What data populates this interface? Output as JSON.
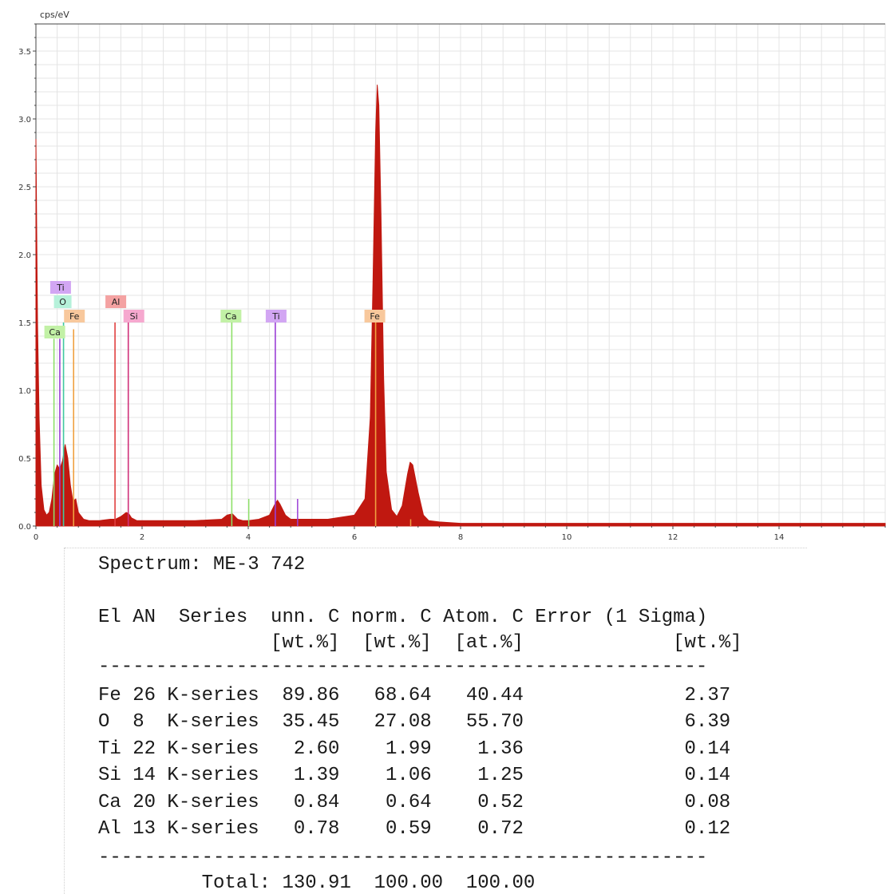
{
  "chart_data": {
    "type": "line",
    "ylabel": "cps/eV",
    "xlim": [
      0,
      16
    ],
    "ylim": [
      0,
      3.7
    ],
    "x_ticks": [
      0,
      2,
      4,
      6,
      8,
      10,
      12,
      14
    ],
    "y_ticks": [
      0.0,
      0.5,
      1.0,
      1.5,
      2.0,
      2.5,
      3.0,
      3.5
    ],
    "y_tick_labels": [
      "0.0",
      "0.5",
      "1.0",
      "1.5",
      "2.0",
      "2.5",
      "3.0",
      "3.5"
    ],
    "series": [
      {
        "color": "#c01810",
        "x": [
          0,
          0.03,
          0.06,
          0.1,
          0.15,
          0.2,
          0.25,
          0.3,
          0.35,
          0.4,
          0.45,
          0.5,
          0.55,
          0.6,
          0.65,
          0.7,
          0.75,
          0.8,
          0.9,
          1.0,
          1.2,
          1.4,
          1.5,
          1.6,
          1.7,
          1.75,
          1.8,
          1.9,
          2.0,
          2.5,
          3.0,
          3.5,
          3.6,
          3.7,
          3.8,
          3.9,
          4.0,
          4.2,
          4.4,
          4.5,
          4.55,
          4.6,
          4.7,
          4.8,
          5.0,
          5.5,
          6.0,
          6.2,
          6.3,
          6.35,
          6.4,
          6.43,
          6.46,
          6.5,
          6.55,
          6.6,
          6.7,
          6.8,
          6.9,
          7.0,
          7.05,
          7.1,
          7.2,
          7.3,
          7.4,
          7.6,
          8.0,
          9.0,
          10.0,
          11.0,
          12.0,
          13.0,
          14.0,
          15.0,
          16.0
        ],
        "y": [
          2.85,
          1.5,
          0.8,
          0.3,
          0.12,
          0.08,
          0.1,
          0.2,
          0.38,
          0.45,
          0.42,
          0.48,
          0.6,
          0.5,
          0.3,
          0.18,
          0.2,
          0.1,
          0.05,
          0.04,
          0.04,
          0.05,
          0.05,
          0.07,
          0.1,
          0.09,
          0.06,
          0.04,
          0.04,
          0.04,
          0.04,
          0.05,
          0.08,
          0.09,
          0.05,
          0.04,
          0.04,
          0.05,
          0.08,
          0.16,
          0.19,
          0.16,
          0.08,
          0.05,
          0.05,
          0.05,
          0.08,
          0.2,
          0.8,
          1.8,
          2.9,
          3.25,
          3.1,
          2.3,
          1.1,
          0.4,
          0.12,
          0.07,
          0.15,
          0.38,
          0.47,
          0.45,
          0.25,
          0.08,
          0.04,
          0.03,
          0.02,
          0.02,
          0.02,
          0.02,
          0.02,
          0.02,
          0.02,
          0.02,
          0.02
        ]
      }
    ],
    "markers": [
      {
        "label": "Ca",
        "x": 0.34,
        "height": 1.38,
        "color": "#8de068",
        "bg": "#c2f1a6"
      },
      {
        "label": "Ti",
        "x": 0.45,
        "height": 1.38,
        "color": "#9a3fd6",
        "bg": "#d2a6f3"
      },
      {
        "label": "O",
        "x": 0.52,
        "height": 1.5,
        "color": "#40c8a0",
        "bg": "#b6f1da"
      },
      {
        "label": "Fe",
        "x": 0.71,
        "height": 1.45,
        "color": "#f0a040",
        "bg": "#f8c89c"
      },
      {
        "label": "Al",
        "x": 1.49,
        "height": 1.5,
        "color": "#e04040",
        "bg": "#f4a2a2"
      },
      {
        "label": "Si",
        "x": 1.74,
        "height": 1.5,
        "color": "#d0307a",
        "bg": "#f6a8cf"
      },
      {
        "label": "Ca",
        "x": 3.69,
        "height": 1.5,
        "color": "#8de068",
        "bg": "#c2f1a6"
      },
      {
        "label": "Ti",
        "x": 4.51,
        "height": 1.5,
        "color": "#9a3fd6",
        "bg": "#d2a6f3"
      },
      {
        "label": "Fe",
        "x": 6.4,
        "height": 1.5,
        "color": "#f0a040",
        "bg": "#f8c89c"
      }
    ],
    "minor_lines": [
      {
        "x": 4.01,
        "height": 0.2,
        "color": "#8de068"
      },
      {
        "x": 4.93,
        "height": 0.2,
        "color": "#9a3fd6"
      },
      {
        "x": 7.06,
        "height": 0.05,
        "color": "#f0a040"
      }
    ]
  },
  "report": {
    "spectrum": "Spectrum: ME-3 742",
    "header1": "El AN  Series  unn. C norm. C Atom. C Error (1 Sigma)",
    "header2": "               [wt.%]  [wt.%]  [at.%]             [wt.%]",
    "divider": "-----------------------------------------------------",
    "rows": [
      "Fe 26 K-series  89.86   68.64   40.44              2.37",
      "O  8  K-series  35.45   27.08   55.70              6.39",
      "Ti 22 K-series   2.60    1.99    1.36              0.14",
      "Si 14 K-series   1.39    1.06    1.25              0.14",
      "Ca 20 K-series   0.84    0.64    0.52              0.08",
      "Al 13 K-series   0.78    0.59    0.72              0.12"
    ],
    "divider2": "-----------------------------------------------------",
    "total": "         Total: 130.91  100.00  100.00"
  }
}
